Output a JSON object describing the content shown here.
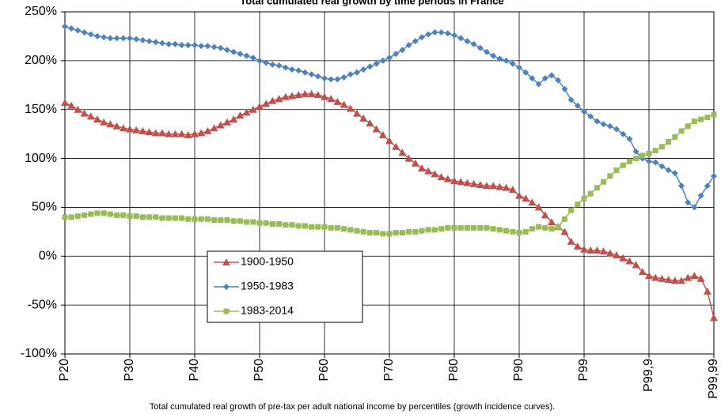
{
  "chart_data": {
    "type": "line",
    "title": "Total cumulated real growth by time periods in France",
    "caption": "Total cumulated real growth of pre-tax per adult national income by percentiles (growth incidence curves).",
    "categories": [
      "P20",
      null,
      null,
      null,
      null,
      null,
      null,
      null,
      null,
      null,
      "P30",
      null,
      null,
      null,
      null,
      null,
      null,
      null,
      null,
      null,
      "P40",
      null,
      null,
      null,
      null,
      null,
      null,
      null,
      null,
      null,
      "P50",
      null,
      null,
      null,
      null,
      null,
      null,
      null,
      null,
      null,
      "P60",
      null,
      null,
      null,
      null,
      null,
      null,
      null,
      null,
      null,
      "P70",
      null,
      null,
      null,
      null,
      null,
      null,
      null,
      null,
      null,
      "P80",
      null,
      null,
      null,
      null,
      null,
      null,
      null,
      null,
      null,
      "P90",
      null,
      null,
      null,
      null,
      null,
      null,
      null,
      null,
      null,
      "P99",
      null,
      null,
      null,
      null,
      null,
      null,
      null,
      null,
      null,
      "P99,9",
      null,
      null,
      null,
      null,
      null,
      null,
      null,
      null,
      null,
      "P99,99"
    ],
    "series": [
      {
        "name": "1900-1950",
        "color": "#c0504d",
        "marker": "triangle",
        "values": [
          157,
          154,
          150,
          146,
          143,
          140,
          137,
          135,
          133,
          131,
          130,
          129,
          128,
          127,
          126,
          126,
          125,
          125,
          125,
          124,
          125,
          126,
          128,
          131,
          134,
          137,
          140,
          144,
          147,
          150,
          153,
          156,
          159,
          161,
          163,
          164,
          165,
          166,
          166,
          165,
          163,
          161,
          158,
          155,
          151,
          146,
          141,
          136,
          130,
          124,
          118,
          112,
          106,
          100,
          95,
          90,
          87,
          84,
          81,
          79,
          77,
          76,
          75,
          74,
          73,
          72,
          72,
          71,
          70,
          68,
          62,
          59,
          55,
          50,
          42,
          35,
          30,
          25,
          15,
          10,
          7,
          6,
          6,
          5,
          3,
          1,
          -2,
          -5,
          -9,
          -16,
          -20,
          -22,
          -23,
          -24,
          -25,
          -25,
          -22,
          -20,
          -23,
          -36,
          -63
        ]
      },
      {
        "name": "1950-1983",
        "color": "#4f81bd",
        "marker": "diamond",
        "values": [
          235,
          233,
          231,
          229,
          227,
          225,
          224,
          223,
          223,
          223,
          223,
          222,
          221,
          220,
          219,
          218,
          217,
          217,
          216,
          216,
          216,
          215,
          215,
          214,
          213,
          211,
          209,
          207,
          205,
          203,
          200,
          198,
          196,
          195,
          193,
          191,
          190,
          188,
          186,
          184,
          182,
          181,
          181,
          183,
          186,
          188,
          191,
          194,
          197,
          200,
          203,
          207,
          211,
          216,
          220,
          224,
          227,
          229,
          229,
          228,
          226,
          223,
          220,
          217,
          213,
          209,
          205,
          202,
          200,
          197,
          193,
          188,
          182,
          176,
          182,
          185,
          180,
          171,
          160,
          154,
          148,
          143,
          138,
          135,
          133,
          130,
          125,
          120,
          107,
          100,
          97,
          96,
          92,
          88,
          85,
          72,
          55,
          50,
          62,
          72,
          82
        ]
      },
      {
        "name": "1983-2014",
        "color": "#9bbb59",
        "marker": "square",
        "values": [
          40,
          40,
          41,
          42,
          43,
          44,
          44,
          43,
          42,
          42,
          41,
          41,
          40,
          40,
          40,
          39,
          39,
          39,
          39,
          38,
          38,
          38,
          38,
          37,
          37,
          37,
          36,
          36,
          35,
          35,
          34,
          34,
          33,
          33,
          32,
          32,
          31,
          31,
          30,
          30,
          30,
          29,
          29,
          28,
          27,
          26,
          25,
          24,
          24,
          23,
          23,
          24,
          24,
          25,
          25,
          26,
          27,
          27,
          28,
          29,
          29,
          29,
          29,
          29,
          29,
          29,
          28,
          27,
          26,
          25,
          24,
          25,
          28,
          30,
          29,
          28,
          30,
          38,
          47,
          53,
          59,
          64,
          70,
          76,
          82,
          88,
          93,
          97,
          100,
          103,
          105,
          108,
          112,
          117,
          122,
          128,
          133,
          138,
          140,
          142,
          145
        ]
      }
    ],
    "ylim": [
      -100,
      250
    ],
    "yticks": [
      {
        "value": -100,
        "label": "-100%"
      },
      {
        "value": -50,
        "label": "-50%"
      },
      {
        "value": 0,
        "label": "0%"
      },
      {
        "value": 50,
        "label": "50%"
      },
      {
        "value": 100,
        "label": "100%"
      },
      {
        "value": 150,
        "label": "150%"
      },
      {
        "value": 200,
        "label": "200%"
      },
      {
        "value": 250,
        "label": "250%"
      }
    ],
    "grid": true,
    "legend": true
  }
}
